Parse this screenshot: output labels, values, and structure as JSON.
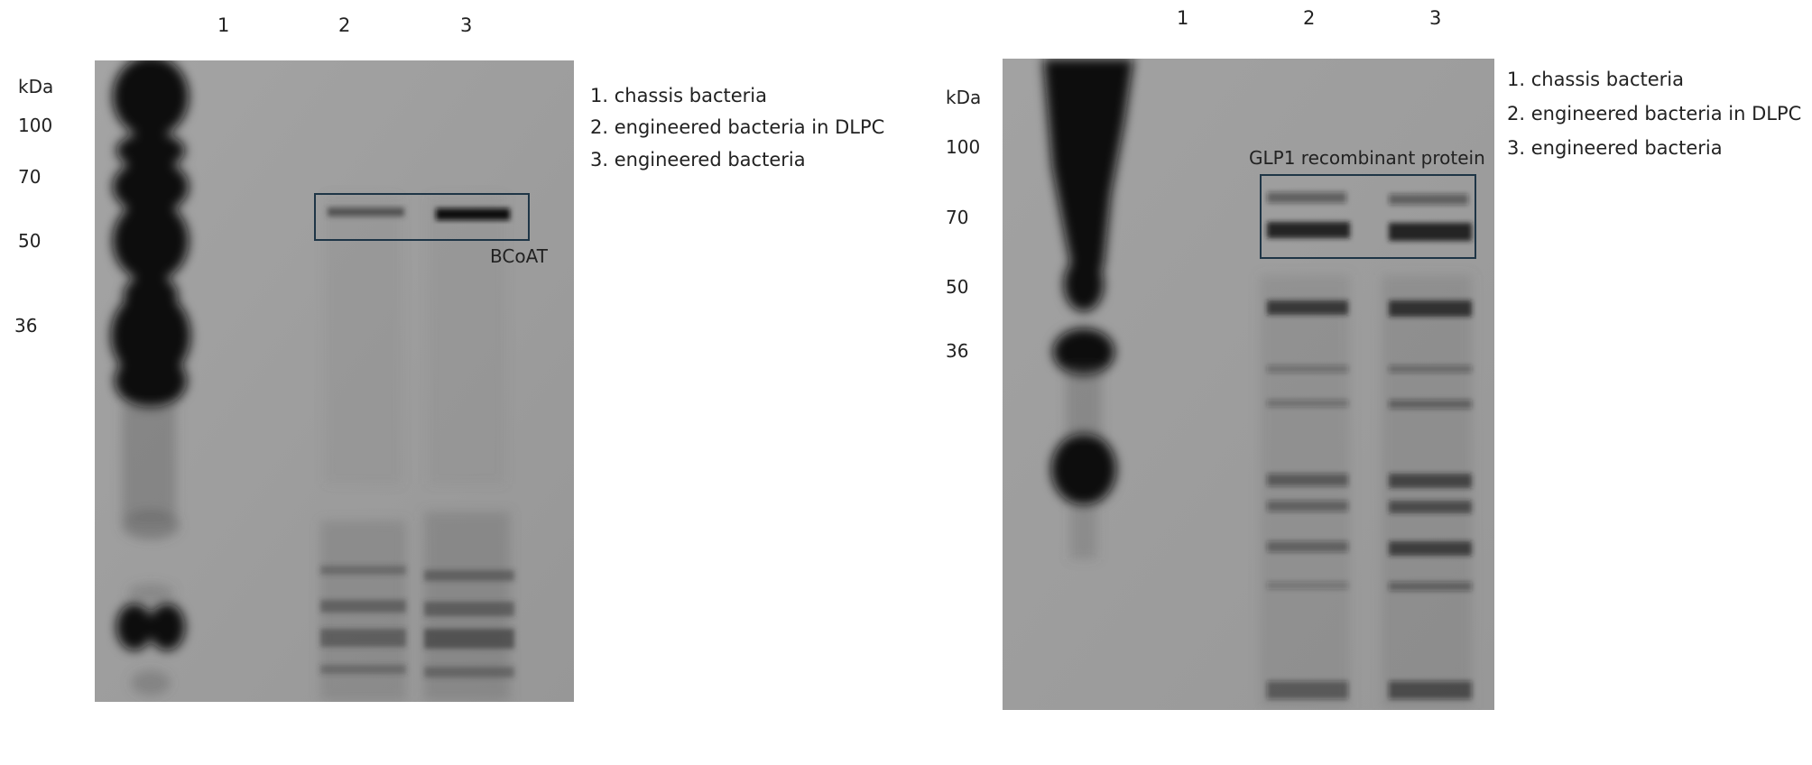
{
  "left_panel": {
    "lanes": [
      "1",
      "2",
      "3"
    ],
    "kda_unit": "kDa",
    "markers": [
      "100",
      "70",
      "50",
      "36"
    ],
    "legend": [
      "1. chassis bacteria",
      "2. engineered bacteria in DLPC",
      "3. engineered bacteria"
    ],
    "box_label": "BCoAT"
  },
  "right_panel": {
    "lanes": [
      "1",
      "2",
      "3"
    ],
    "kda_unit": "kDa",
    "markers": [
      "100",
      "70",
      "50",
      "36"
    ],
    "legend": [
      "1. chassis bacteria",
      "2. engineered bacteria in DLPC",
      "3. engineered bacteria"
    ],
    "box_label": "GLP1 recombinant protein"
  },
  "colors": {
    "membrane": "#9c9c9c",
    "band": "#0b0b0b",
    "box": "#1e3546"
  }
}
